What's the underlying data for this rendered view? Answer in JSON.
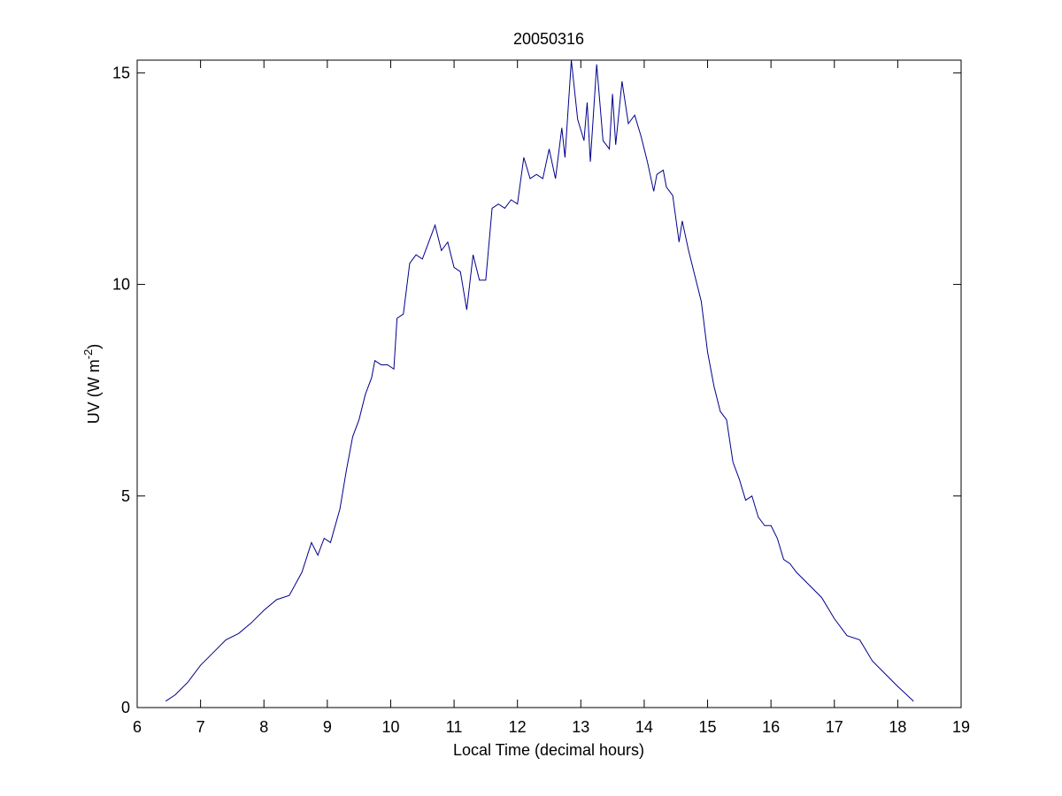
{
  "chart_data": {
    "type": "line",
    "title": "20050316",
    "xlabel": "Local Time (decimal hours)",
    "ylabel": [
      "UV (W m",
      "-2",
      ")"
    ],
    "x": [
      6.45,
      6.6,
      6.8,
      7.0,
      7.2,
      7.4,
      7.6,
      7.8,
      8.0,
      8.2,
      8.4,
      8.6,
      8.75,
      8.85,
      8.95,
      9.05,
      9.2,
      9.3,
      9.4,
      9.5,
      9.6,
      9.7,
      9.75,
      9.85,
      9.95,
      10.05,
      10.1,
      10.2,
      10.3,
      10.4,
      10.5,
      10.6,
      10.7,
      10.8,
      10.9,
      11.0,
      11.1,
      11.2,
      11.3,
      11.4,
      11.5,
      11.6,
      11.7,
      11.8,
      11.9,
      12.0,
      12.1,
      12.2,
      12.3,
      12.4,
      12.5,
      12.6,
      12.7,
      12.75,
      12.85,
      12.95,
      13.05,
      13.1,
      13.15,
      13.25,
      13.35,
      13.45,
      13.5,
      13.55,
      13.65,
      13.75,
      13.85,
      13.95,
      14.05,
      14.15,
      14.2,
      14.3,
      14.35,
      14.45,
      14.55,
      14.6,
      14.7,
      14.8,
      14.9,
      15.0,
      15.1,
      15.2,
      15.3,
      15.4,
      15.5,
      15.6,
      15.7,
      15.8,
      15.9,
      16.0,
      16.1,
      16.2,
      16.3,
      16.4,
      16.6,
      16.8,
      17.0,
      17.2,
      17.4,
      17.6,
      17.8,
      18.0,
      18.25
    ],
    "series": [
      {
        "name": "UV",
        "color": "#00008b",
        "values": [
          0.15,
          0.3,
          0.6,
          1.0,
          1.3,
          1.6,
          1.75,
          2.0,
          2.3,
          2.55,
          2.65,
          3.2,
          3.9,
          3.6,
          4.0,
          3.9,
          4.7,
          5.6,
          6.4,
          6.8,
          7.4,
          7.8,
          8.2,
          8.1,
          8.1,
          8.0,
          9.2,
          9.3,
          10.5,
          10.7,
          10.6,
          11.0,
          11.4,
          10.8,
          11.0,
          10.4,
          10.3,
          9.4,
          10.7,
          10.1,
          10.1,
          11.8,
          11.9,
          11.8,
          12.0,
          11.9,
          13.0,
          12.5,
          12.6,
          12.5,
          13.2,
          12.5,
          13.7,
          13.0,
          15.3,
          13.9,
          13.4,
          14.3,
          12.9,
          15.2,
          13.4,
          13.2,
          14.5,
          13.3,
          14.8,
          13.8,
          14.0,
          13.5,
          12.9,
          12.2,
          12.6,
          12.7,
          12.3,
          12.1,
          11.0,
          11.5,
          10.8,
          10.2,
          9.6,
          8.4,
          7.6,
          7.0,
          6.8,
          5.8,
          5.4,
          4.9,
          5.0,
          4.5,
          4.3,
          4.3,
          4.0,
          3.5,
          3.4,
          3.2,
          2.9,
          2.6,
          2.1,
          1.7,
          1.6,
          1.1,
          0.8,
          0.5,
          0.15
        ]
      }
    ],
    "xlim": [
      6,
      19
    ],
    "xticks": [
      6,
      7,
      8,
      9,
      10,
      11,
      12,
      13,
      14,
      15,
      16,
      17,
      18,
      19
    ],
    "ylim": [
      0,
      15.3
    ],
    "yticks": [
      0,
      5,
      10,
      15
    ]
  }
}
